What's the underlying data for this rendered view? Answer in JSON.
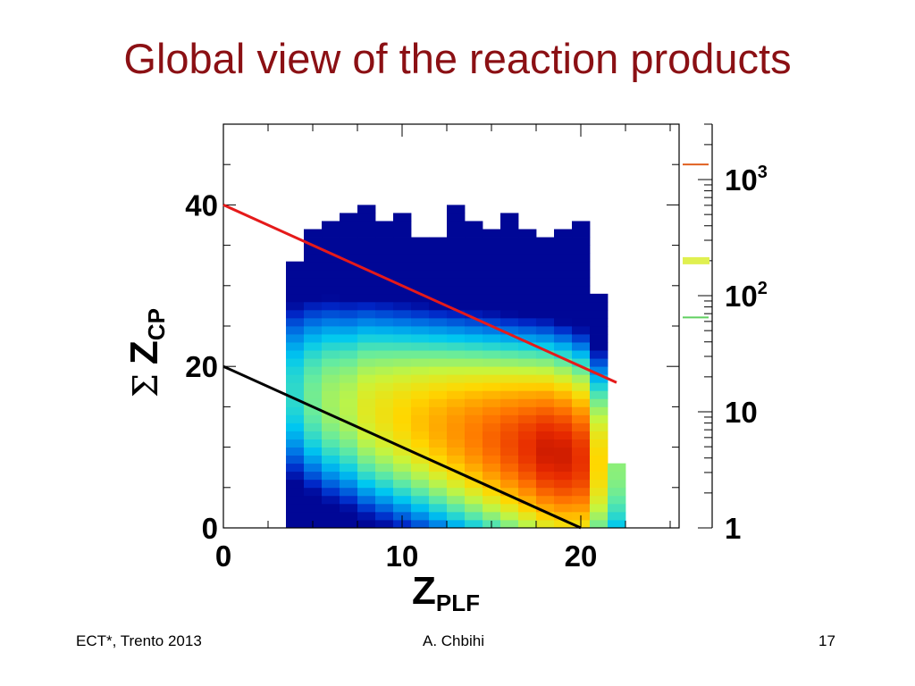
{
  "slide": {
    "title": "Global view of the reaction products",
    "footer_left": "ECT*, Trento 2013",
    "footer_center": "A. Chbihi",
    "footer_right": "17"
  },
  "chart_data": {
    "type": "heatmap",
    "xlabel_main": "Z",
    "xlabel_sub": "PLF",
    "ylabel_sigma": "Σ",
    "ylabel_main": "Z",
    "ylabel_sub": "CP",
    "xlim": [
      0,
      25.5
    ],
    "ylim": [
      0,
      50
    ],
    "x_ticks": [
      0,
      10,
      20
    ],
    "y_ticks": [
      0,
      20,
      40
    ],
    "colorbar": {
      "scale": "log",
      "range": [
        1,
        3000
      ],
      "ticks": [
        {
          "value": 1,
          "label": "1",
          "exp": ""
        },
        {
          "value": 10,
          "label": "10",
          "exp": ""
        },
        {
          "value": 100,
          "label": "10",
          "exp": "2"
        },
        {
          "value": 1000,
          "label": "10",
          "exp": "3"
        }
      ]
    },
    "x_bins": [
      4,
      5,
      6,
      7,
      8,
      9,
      10,
      11,
      12,
      13,
      14,
      15,
      16,
      17,
      18,
      19,
      20,
      21,
      22
    ],
    "y_bin_width": 1,
    "columns": [
      {
        "x": 4,
        "ymax": 33,
        "peak": 1.5
      },
      {
        "x": 5,
        "ymax": 37,
        "peak": 1.8
      },
      {
        "x": 6,
        "ymax": 38,
        "peak": 2.0
      },
      {
        "x": 7,
        "ymax": 39,
        "peak": 2.1
      },
      {
        "x": 8,
        "ymax": 40,
        "peak": 2.3
      },
      {
        "x": 9,
        "ymax": 38,
        "peak": 2.4
      },
      {
        "x": 10,
        "ymax": 39,
        "peak": 2.5
      },
      {
        "x": 11,
        "ymax": 36,
        "peak": 2.6
      },
      {
        "x": 12,
        "ymax": 36,
        "peak": 2.7
      },
      {
        "x": 13,
        "ymax": 40,
        "peak": 2.8
      },
      {
        "x": 14,
        "ymax": 38,
        "peak": 2.9
      },
      {
        "x": 15,
        "ymax": 37,
        "peak": 3.0
      },
      {
        "x": 16,
        "ymax": 39,
        "peak": 3.1
      },
      {
        "x": 17,
        "ymax": 37,
        "peak": 3.2
      },
      {
        "x": 18,
        "ymax": 36,
        "peak": 3.3
      },
      {
        "x": 19,
        "ymax": 37,
        "peak": 3.3
      },
      {
        "x": 20,
        "ymax": 38,
        "peak": 3.2
      },
      {
        "x": 21,
        "ymax": 29,
        "peak": 2.5
      },
      {
        "x": 22,
        "ymax": 8,
        "peak": 1.9
      }
    ],
    "lines": [
      {
        "name": "red",
        "color": "#e51a1a",
        "x": [
          0,
          22
        ],
        "y": [
          40,
          18
        ]
      },
      {
        "name": "black",
        "color": "#000000",
        "x": [
          0,
          20
        ],
        "y": [
          20,
          0
        ]
      }
    ]
  }
}
